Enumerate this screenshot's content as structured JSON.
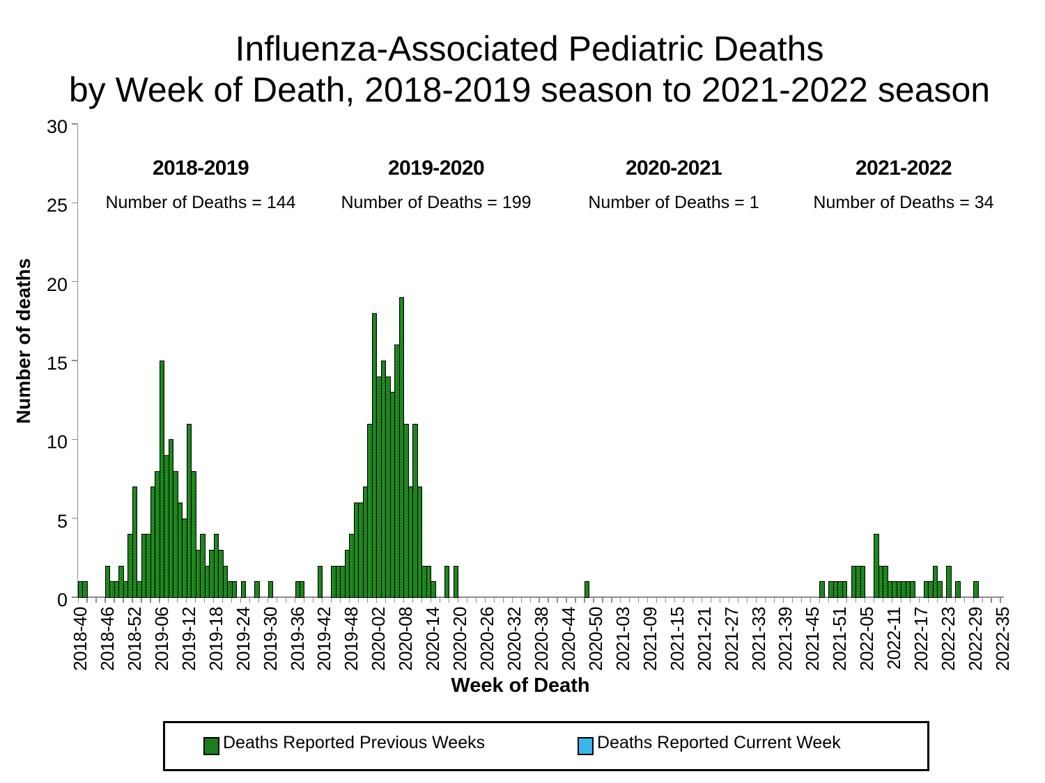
{
  "title": {
    "line1": "Influenza-Associated Pediatric Deaths",
    "line2": "by Week of Death, 2018-2019 season to 2021-2022 season"
  },
  "axes": {
    "y_title": "Number of deaths",
    "x_title": "Week of Death",
    "y_ticks": [
      0,
      5,
      10,
      15,
      20,
      25,
      30
    ],
    "y_max": 30
  },
  "seasons": [
    {
      "label": "2018-2019",
      "note": "Number of Deaths = 144",
      "deaths": 144
    },
    {
      "label": "2019-2020",
      "note": "Number of Deaths = 199",
      "deaths": 199
    },
    {
      "label": "2020-2021",
      "note": "Number of Deaths = 1",
      "deaths": 1
    },
    {
      "label": "2021-2022",
      "note": "Number of Deaths = 34",
      "deaths": 34
    }
  ],
  "legend": {
    "items": [
      {
        "label": "Deaths Reported Previous Weeks",
        "color": "#1a7f1a",
        "name": "previous-weeks"
      },
      {
        "label": "Deaths Reported Current Week",
        "color": "#3cb4ec",
        "name": "current-week"
      }
    ]
  },
  "colors": {
    "bar_fill": "#1a7f1a",
    "bar_speckle": "#2fa52f",
    "bar_border": "#000000",
    "current_week_fill": "#3cb4ec",
    "axis_line": "#8c8c8c",
    "text": "#000000",
    "background": "#ffffff"
  },
  "chart_data": {
    "type": "bar",
    "title": "Influenza-Associated Pediatric Deaths by Week of Death, 2018-2019 season to 2021-2022 season",
    "xlabel": "Week of Death",
    "ylabel": "Number of deaths",
    "ylim": [
      0,
      30
    ],
    "y_ticks": [
      0,
      5,
      10,
      15,
      20,
      25,
      30
    ],
    "grid": false,
    "legend_position": "bottom",
    "categories": [
      "2018-40",
      "2018-41",
      "2018-42",
      "2018-43",
      "2018-44",
      "2018-45",
      "2018-46",
      "2018-47",
      "2018-48",
      "2018-49",
      "2018-50",
      "2018-51",
      "2018-52",
      "2019-01",
      "2019-02",
      "2019-03",
      "2019-04",
      "2019-05",
      "2019-06",
      "2019-07",
      "2019-08",
      "2019-09",
      "2019-10",
      "2019-11",
      "2019-12",
      "2019-13",
      "2019-14",
      "2019-15",
      "2019-16",
      "2019-17",
      "2019-18",
      "2019-19",
      "2019-20",
      "2019-21",
      "2019-22",
      "2019-23",
      "2019-24",
      "2019-25",
      "2019-26",
      "2019-27",
      "2019-28",
      "2019-29",
      "2019-30",
      "2019-31",
      "2019-32",
      "2019-33",
      "2019-34",
      "2019-35",
      "2019-36",
      "2019-37",
      "2019-38",
      "2019-39",
      "2019-40",
      "2019-41",
      "2019-42",
      "2019-43",
      "2019-44",
      "2019-45",
      "2019-46",
      "2019-47",
      "2019-48",
      "2019-49",
      "2019-50",
      "2019-51",
      "2019-52",
      "2020-01",
      "2020-02",
      "2020-03",
      "2020-04",
      "2020-05",
      "2020-06",
      "2020-07",
      "2020-08",
      "2020-09",
      "2020-10",
      "2020-11",
      "2020-12",
      "2020-13",
      "2020-14",
      "2020-15",
      "2020-16",
      "2020-17",
      "2020-18",
      "2020-19",
      "2020-20",
      "2020-21",
      "2020-22",
      "2020-23",
      "2020-24",
      "2020-25",
      "2020-26",
      "2020-27",
      "2020-28",
      "2020-29",
      "2020-30",
      "2020-31",
      "2020-32",
      "2020-33",
      "2020-34",
      "2020-35",
      "2020-36",
      "2020-37",
      "2020-38",
      "2020-39",
      "2020-40",
      "2020-41",
      "2020-42",
      "2020-43",
      "2020-44",
      "2020-45",
      "2020-46",
      "2020-47",
      "2020-48",
      "2020-49",
      "2020-50",
      "2020-51",
      "2020-52",
      "2020-53",
      "2021-01",
      "2021-02",
      "2021-03",
      "2021-04",
      "2021-05",
      "2021-06",
      "2021-07",
      "2021-08",
      "2021-09",
      "2021-10",
      "2021-11",
      "2021-12",
      "2021-13",
      "2021-14",
      "2021-15",
      "2021-16",
      "2021-17",
      "2021-18",
      "2021-19",
      "2021-20",
      "2021-21",
      "2021-22",
      "2021-23",
      "2021-24",
      "2021-25",
      "2021-26",
      "2021-27",
      "2021-28",
      "2021-29",
      "2021-30",
      "2021-31",
      "2021-32",
      "2021-33",
      "2021-34",
      "2021-35",
      "2021-36",
      "2021-37",
      "2021-38",
      "2021-39",
      "2021-40",
      "2021-41",
      "2021-42",
      "2021-43",
      "2021-44",
      "2021-45",
      "2021-46",
      "2021-47",
      "2021-48",
      "2021-49",
      "2021-50",
      "2021-51",
      "2021-52",
      "2022-01",
      "2022-02",
      "2022-03",
      "2022-04",
      "2022-05",
      "2022-06",
      "2022-07",
      "2022-08",
      "2022-09",
      "2022-10",
      "2022-11",
      "2022-12",
      "2022-13",
      "2022-14",
      "2022-15",
      "2022-16",
      "2022-17",
      "2022-18",
      "2022-19",
      "2022-20",
      "2022-21",
      "2022-22",
      "2022-23",
      "2022-24",
      "2022-25",
      "2022-26",
      "2022-27",
      "2022-28",
      "2022-29",
      "2022-30",
      "2022-31",
      "2022-32",
      "2022-33",
      "2022-34",
      "2022-35"
    ],
    "series": [
      {
        "name": "Deaths Reported Previous Weeks",
        "values": [
          1,
          1,
          0,
          0,
          0,
          0,
          2,
          1,
          1,
          2,
          1,
          4,
          7,
          1,
          4,
          4,
          7,
          8,
          15,
          9,
          10,
          8,
          6,
          5,
          11,
          8,
          3,
          4,
          2,
          3,
          4,
          3,
          2,
          1,
          1,
          0,
          1,
          0,
          0,
          1,
          0,
          0,
          1,
          0,
          0,
          0,
          0,
          0,
          1,
          1,
          0,
          0,
          0,
          2,
          0,
          0,
          2,
          2,
          2,
          3,
          4,
          6,
          6,
          7,
          11,
          18,
          14,
          15,
          14,
          13,
          16,
          19,
          11,
          7,
          11,
          7,
          2,
          2,
          1,
          0,
          0,
          2,
          0,
          2,
          0,
          0,
          0,
          0,
          0,
          0,
          0,
          0,
          0,
          0,
          0,
          0,
          0,
          0,
          0,
          0,
          0,
          0,
          0,
          0,
          0,
          0,
          0,
          0,
          0,
          0,
          0,
          0,
          1,
          0,
          0,
          0,
          0,
          0,
          0,
          0,
          0,
          0,
          0,
          0,
          0,
          0,
          0,
          0,
          0,
          0,
          0,
          0,
          0,
          0,
          0,
          0,
          0,
          0,
          0,
          0,
          0,
          0,
          0,
          0,
          0,
          0,
          0,
          0,
          0,
          0,
          0,
          0,
          0,
          0,
          0,
          0,
          0,
          0,
          0,
          0,
          0,
          0,
          0,
          0,
          1,
          0,
          1,
          1,
          1,
          1,
          0,
          2,
          2,
          2,
          0,
          0,
          4,
          2,
          2,
          1,
          1,
          1,
          1,
          1,
          1,
          0,
          0,
          1,
          1,
          2,
          1,
          0,
          2,
          0,
          1,
          0,
          0,
          0,
          1,
          0,
          0,
          0,
          0,
          0,
          0
        ]
      },
      {
        "name": "Deaths Reported Current Week",
        "values": [
          0,
          0,
          0,
          0,
          0,
          0,
          0,
          0,
          0,
          0,
          0,
          0,
          0,
          0,
          0,
          0,
          0,
          0,
          0,
          0,
          0,
          0,
          0,
          0,
          0,
          0,
          0,
          0,
          0,
          0,
          0,
          0,
          0,
          0,
          0,
          0,
          0,
          0,
          0,
          0,
          0,
          0,
          0,
          0,
          0,
          0,
          0,
          0,
          0,
          0,
          0,
          0,
          0,
          0,
          0,
          0,
          0,
          0,
          0,
          0,
          0,
          0,
          0,
          0,
          0,
          0,
          0,
          0,
          0,
          0,
          0,
          0,
          0,
          0,
          0,
          0,
          0,
          0,
          0,
          0,
          0,
          0,
          0,
          0,
          0,
          0,
          0,
          0,
          0,
          0,
          0,
          0,
          0,
          0,
          0,
          0,
          0,
          0,
          0,
          0,
          0,
          0,
          0,
          0,
          0,
          0,
          0,
          0,
          0,
          0,
          0,
          0,
          0,
          0,
          0,
          0,
          0,
          0,
          0,
          0,
          0,
          0,
          0,
          0,
          0,
          0,
          0,
          0,
          0,
          0,
          0,
          0,
          0,
          0,
          0,
          0,
          0,
          0,
          0,
          0,
          0,
          0,
          0,
          0,
          0,
          0,
          0,
          0,
          0,
          0,
          0,
          0,
          0,
          0,
          0,
          0,
          0,
          0,
          0,
          0,
          0,
          0,
          0,
          0,
          0,
          0,
          0,
          0,
          0,
          0,
          0,
          0,
          0,
          0,
          0,
          0,
          0,
          0,
          0,
          0,
          0,
          0,
          0,
          0,
          0,
          0,
          0,
          0,
          0,
          0,
          0,
          0,
          0,
          0,
          0,
          0,
          0,
          0,
          0,
          0,
          0,
          0,
          0,
          0,
          0
        ]
      }
    ],
    "x_tick_labels": [
      "2018-40",
      "2018-46",
      "2018-52",
      "2019-06",
      "2019-12",
      "2019-18",
      "2019-24",
      "2019-30",
      "2019-36",
      "2019-42",
      "2019-48",
      "2020-02",
      "2020-08",
      "2020-14",
      "2020-20",
      "2020-26",
      "2020-32",
      "2020-38",
      "2020-44",
      "2020-50",
      "2021-03",
      "2021-09",
      "2021-15",
      "2021-21",
      "2021-27",
      "2021-33",
      "2021-39",
      "2021-45",
      "2021-51",
      "2022-05",
      "2022-11",
      "2022-17",
      "2022-23",
      "2022-29",
      "2022-35"
    ],
    "x_label_every_n_weeks": 6,
    "x_minor_tick_every_n_weeks": 2,
    "season_totals": {
      "2018-2019": 144,
      "2019-2020": 199,
      "2020-2021": 1,
      "2021-2022": 34
    }
  }
}
